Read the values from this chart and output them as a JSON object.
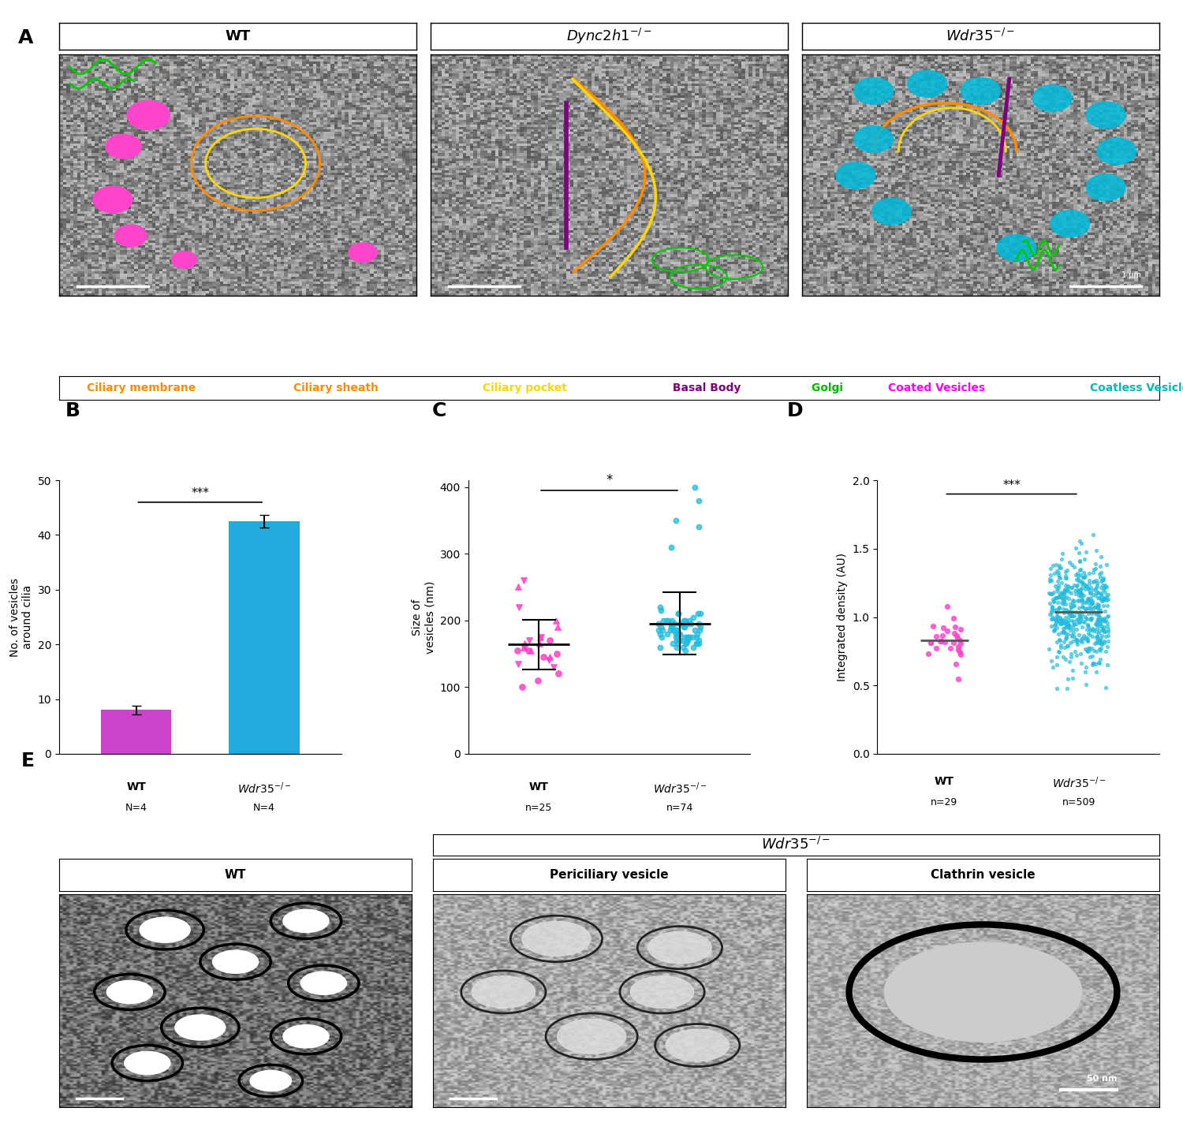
{
  "legend_texts": [
    "Ciliary membrane",
    "Ciliary sheath",
    "Ciliary pocket",
    "Basal Body",
    "Golgi",
    "Coated Vesicles",
    "Coatless Vesicles"
  ],
  "legend_colors": [
    "#FF8C00",
    "#FF8C00",
    "#FFD700",
    "#800080",
    "#00CC00",
    "#FF00FF",
    "#00BBBB"
  ],
  "bar_wt_mean": 8.0,
  "bar_wt_sem": 0.8,
  "bar_wdr35_mean": 42.5,
  "bar_wdr35_sem": 1.2,
  "bar_wt_color": "#CC44CC",
  "bar_wdr35_color": "#22AADD",
  "wt_vesicle_sizes": [
    165,
    140,
    155,
    175,
    135,
    150,
    200,
    220,
    120,
    160,
    170,
    145,
    190,
    130,
    155,
    165,
    175,
    110,
    145,
    160,
    170,
    250,
    260,
    100,
    155
  ],
  "wdr35_vesicle_sizes": [
    170,
    180,
    160,
    190,
    200,
    175,
    165,
    185,
    210,
    155,
    170,
    195,
    205,
    180,
    165,
    175,
    190,
    200,
    185,
    170,
    160,
    180,
    195,
    210,
    220,
    185,
    175,
    165,
    180,
    195,
    200,
    215,
    170,
    185,
    190,
    160,
    175,
    200,
    185,
    165,
    180,
    195,
    210,
    175,
    190,
    200,
    185,
    170,
    165,
    180,
    195,
    175,
    190,
    160,
    175,
    200,
    185,
    165,
    180,
    195,
    210,
    175,
    190,
    200,
    310,
    340,
    350,
    380,
    400,
    170,
    185,
    165,
    180,
    195
  ],
  "wt_density_mean": 0.83,
  "wdr35_density_mean": 1.03,
  "figure_bg": "#FFFFFF",
  "wt_scatter_color": "#FF44CC",
  "wdr35_scatter_color": "#22BBDD"
}
